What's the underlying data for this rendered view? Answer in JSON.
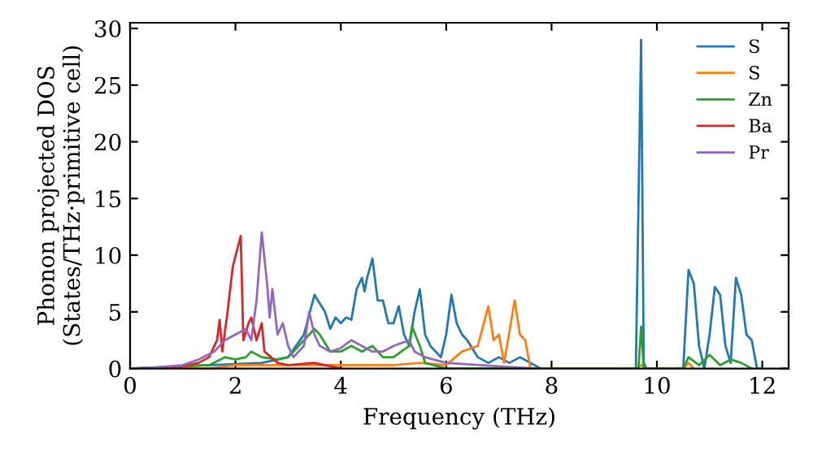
{
  "chart_data": {
    "type": "line",
    "xlabel": "Frequency (THz)",
    "ylabel": "Phonon projected DOS\n(States/THz·primitive cell)",
    "xlim": [
      0,
      12.5
    ],
    "ylim": [
      0,
      30.5
    ],
    "xticks": [
      0,
      2,
      4,
      6,
      8,
      10,
      12
    ],
    "yticks": [
      0,
      5,
      10,
      15,
      20,
      25,
      30
    ],
    "legend": "top right",
    "grid": false,
    "series": [
      {
        "name": "S",
        "color": "#1f77b4",
        "x": [
          0,
          2.5,
          3.0,
          3.3,
          3.5,
          3.7,
          3.8,
          3.9,
          4.0,
          4.1,
          4.2,
          4.3,
          4.4,
          4.45,
          4.5,
          4.6,
          4.7,
          4.8,
          4.9,
          5.0,
          5.1,
          5.2,
          5.3,
          5.4,
          5.5,
          5.6,
          5.7,
          5.9,
          6.0,
          6.1,
          6.2,
          6.3,
          6.4,
          6.6,
          6.8,
          7.0,
          7.2,
          7.4,
          7.6,
          7.8,
          9.6,
          9.7,
          9.75,
          9.8,
          10.5,
          10.6,
          10.7,
          10.8,
          10.9,
          11.0,
          11.1,
          11.2,
          11.3,
          11.4,
          11.5,
          11.6,
          11.7,
          11.8,
          11.9,
          12
        ],
        "values": [
          0,
          0.5,
          1,
          3,
          6.5,
          5,
          3.5,
          4.5,
          4,
          4.5,
          4.3,
          7,
          8,
          6.8,
          8,
          9.7,
          6,
          6,
          4,
          4,
          5.5,
          3,
          2,
          5,
          7,
          3,
          2,
          1,
          3,
          6.5,
          4,
          3,
          2.5,
          1,
          0.5,
          1,
          0.5,
          1,
          0.5,
          0,
          0,
          29,
          0.5,
          0,
          0,
          8.7,
          7.5,
          2,
          0,
          3,
          7.2,
          6.5,
          2,
          0.5,
          8,
          6.5,
          3,
          2.5,
          0,
          0
        ]
      },
      {
        "name": "S",
        "color": "#ff7f0e",
        "x": [
          0,
          1.5,
          2.0,
          3.0,
          4.0,
          5.0,
          5.5,
          6.0,
          6.3,
          6.6,
          6.8,
          6.9,
          7.0,
          7.1,
          7.3,
          7.4,
          7.5,
          7.6,
          9.6,
          9.7,
          9.8,
          10.5,
          10.6,
          10.7
        ],
        "values": [
          0,
          0,
          0.3,
          0.3,
          0.3,
          0.3,
          0.5,
          0.3,
          1.5,
          2,
          5.5,
          2.5,
          3,
          0.5,
          6,
          3,
          2.5,
          0,
          0,
          0.3,
          0,
          0,
          0.5,
          0
        ]
      },
      {
        "name": "Zn",
        "color": "#2ca02c",
        "x": [
          0,
          1.5,
          1.8,
          2.0,
          2.2,
          2.3,
          2.5,
          2.8,
          3.0,
          3.3,
          3.5,
          3.6,
          3.8,
          4.0,
          4.2,
          4.4,
          4.6,
          4.8,
          5.0,
          5.3,
          5.35,
          5.5,
          5.6,
          6.0,
          9.65,
          9.7,
          9.75,
          10.5,
          10.6,
          10.8,
          11.0,
          11.2,
          11.4,
          11.6,
          11.8
        ],
        "values": [
          0,
          0.3,
          1,
          0.8,
          1,
          1.5,
          1,
          0.8,
          1,
          2.5,
          3.5,
          3,
          1.5,
          1.5,
          2,
          1.5,
          2,
          1,
          1,
          2,
          3.7,
          2,
          0.5,
          0,
          0,
          3.7,
          0,
          0,
          1,
          0.3,
          1.2,
          0.3,
          0.8,
          0.5,
          0
        ]
      },
      {
        "name": "Ba",
        "color": "#d62728",
        "x": [
          0,
          0.5,
          1.0,
          1.3,
          1.5,
          1.65,
          1.7,
          1.75,
          1.85,
          1.95,
          2.1,
          2.15,
          2.25,
          2.3,
          2.4,
          2.5,
          2.55,
          2.8,
          3.0,
          3.5,
          4.0
        ],
        "values": [
          0,
          0,
          0.2,
          0.5,
          1,
          2.5,
          4.3,
          1.5,
          5,
          9,
          11.7,
          2.5,
          4,
          4.5,
          2.5,
          4,
          1.5,
          0.5,
          0.3,
          0.5,
          0
        ]
      },
      {
        "name": "Pr",
        "color": "#9467bd",
        "x": [
          0,
          0.5,
          1.0,
          1.3,
          1.6,
          1.8,
          2.0,
          2.2,
          2.3,
          2.4,
          2.5,
          2.6,
          2.65,
          2.7,
          2.8,
          2.9,
          3.0,
          3.1,
          3.3,
          3.4,
          3.5,
          3.6,
          3.8,
          4.0,
          4.2,
          4.4,
          4.6,
          4.8,
          5.0,
          5.3,
          5.4,
          5.6,
          6.0,
          7.0,
          7.7
        ],
        "values": [
          0,
          0.1,
          0.3,
          0.8,
          1.5,
          2.5,
          3,
          3.5,
          2.5,
          6,
          12,
          7.5,
          4.5,
          7,
          3,
          4,
          2,
          1,
          2,
          5,
          3,
          2,
          1.5,
          1.8,
          2.5,
          2,
          1.5,
          1.5,
          2,
          2.5,
          1.5,
          1,
          0.5,
          0.2,
          0
        ]
      }
    ]
  }
}
